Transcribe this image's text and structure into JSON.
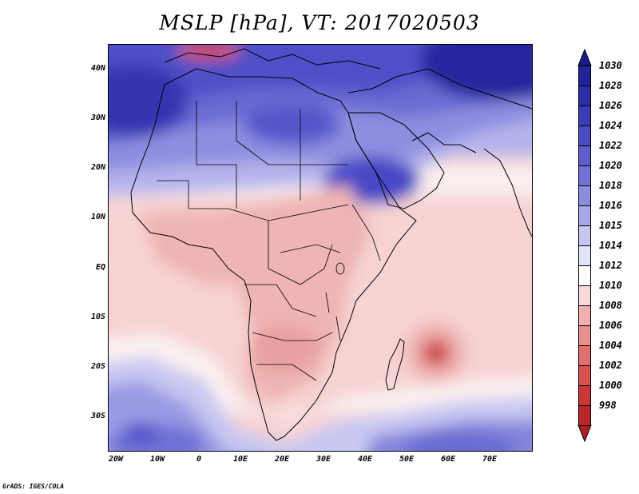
{
  "title": "MSLP [hPa], VT: 2017020503",
  "credit": "GrADS: IGES/COLA",
  "map": {
    "variable": "Mean sea level pressure",
    "units": "hPa",
    "region": "Africa and surrounding oceans",
    "lon_range": [
      -20,
      80
    ],
    "lat_range": [
      -37,
      45
    ],
    "features": [
      "High pressure over Mediterranean, North Africa and Middle East",
      "Low pressure trough over central and southern Africa",
      "Tropical low east of Madagascar near 57E 17S",
      "High pressure belt over Southern Ocean"
    ]
  },
  "y_axis_labels": [
    {
      "label": "40N",
      "lat": 40
    },
    {
      "label": "30N",
      "lat": 30
    },
    {
      "label": "20N",
      "lat": 20
    },
    {
      "label": "10N",
      "lat": 10
    },
    {
      "label": "EQ",
      "lat": 0
    },
    {
      "label": "10S",
      "lat": -10
    },
    {
      "label": "20S",
      "lat": -20
    },
    {
      "label": "30S",
      "lat": -30
    }
  ],
  "x_axis_labels": [
    {
      "label": "20W",
      "lon": -20
    },
    {
      "label": "10W",
      "lon": -10
    },
    {
      "label": "0",
      "lon": 0
    },
    {
      "label": "10E",
      "lon": 10
    },
    {
      "label": "20E",
      "lon": 20
    },
    {
      "label": "30E",
      "lon": 30
    },
    {
      "label": "40E",
      "lon": 40
    },
    {
      "label": "50E",
      "lon": 50
    },
    {
      "label": "60E",
      "lon": 60
    },
    {
      "label": "70E",
      "lon": 70
    }
  ],
  "colorbar": {
    "top_color": "#1a1a8c",
    "bottom_color": "#b01d24",
    "levels": [
      {
        "label": "1030",
        "color": "#22229a"
      },
      {
        "label": "1028",
        "color": "#2d2daa"
      },
      {
        "label": "1026",
        "color": "#3c3cb8"
      },
      {
        "label": "1024",
        "color": "#4b4bc3"
      },
      {
        "label": "1022",
        "color": "#5d5dcd"
      },
      {
        "label": "1020",
        "color": "#7272d6"
      },
      {
        "label": "1018",
        "color": "#8c8cdf"
      },
      {
        "label": "1016",
        "color": "#a8a8e8"
      },
      {
        "label": "1015",
        "color": "#c6c6f0"
      },
      {
        "label": "1014",
        "color": "#e2e2f8"
      },
      {
        "label": "1012",
        "color": "#ffffff"
      },
      {
        "label": "1010",
        "color": "#f8d8d8"
      },
      {
        "label": "1008",
        "color": "#f0b0b0"
      },
      {
        "label": "1006",
        "color": "#e89090"
      },
      {
        "label": "1004",
        "color": "#e07070"
      },
      {
        "label": "1002",
        "color": "#d85050"
      },
      {
        "label": "1000",
        "color": "#cc3535"
      },
      {
        "label": "998",
        "color": "#b82828"
      }
    ]
  }
}
